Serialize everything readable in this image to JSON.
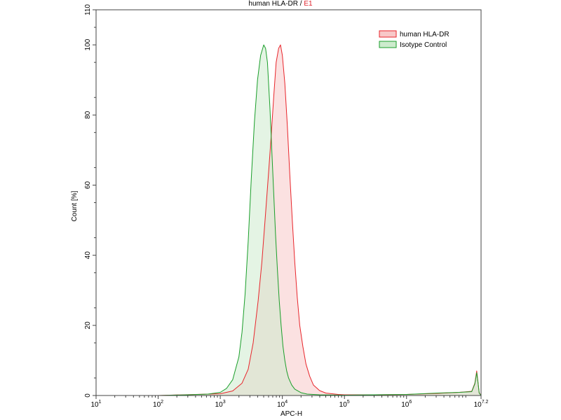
{
  "chart_data": {
    "type": "area",
    "title": "human HLA-DR",
    "title_separator": "/",
    "title_gate": "E1",
    "xlabel": "APC-H",
    "ylabel": "Count [%]",
    "x_scale": "log",
    "xlim": [
      10,
      15848932
    ],
    "ylim": [
      0,
      110
    ],
    "grid": false,
    "legend_position": "top-right",
    "x_ticks": [
      {
        "value": 10,
        "base": "10",
        "exp": "1"
      },
      {
        "value": 100,
        "base": "10",
        "exp": "2"
      },
      {
        "value": 1000,
        "base": "10",
        "exp": "3"
      },
      {
        "value": 10000,
        "base": "10",
        "exp": "4"
      },
      {
        "value": 100000,
        "base": "10",
        "exp": "5"
      },
      {
        "value": 1000000,
        "base": "10",
        "exp": "6"
      },
      {
        "value": 15848932,
        "base": "10",
        "exp": "7.2"
      }
    ],
    "y_ticks": [
      0,
      20,
      40,
      60,
      80,
      100,
      110
    ],
    "series": [
      {
        "name": "human HLA-DR",
        "line_color": "#e8252b",
        "fill_color": "#f8c8c8",
        "points": [
          [
            10,
            0
          ],
          [
            100,
            0
          ],
          [
            400,
            0.3
          ],
          [
            1000,
            0.5
          ],
          [
            1585,
            1.3
          ],
          [
            2239,
            3.5
          ],
          [
            2818,
            7.5
          ],
          [
            3388,
            15
          ],
          [
            4074,
            27
          ],
          [
            4677,
            38
          ],
          [
            5370,
            52
          ],
          [
            6026,
            64
          ],
          [
            6607,
            74
          ],
          [
            7244,
            85
          ],
          [
            7943,
            95
          ],
          [
            8710,
            99
          ],
          [
            9333,
            100
          ],
          [
            10000,
            97
          ],
          [
            10965,
            89
          ],
          [
            12023,
            77
          ],
          [
            13183,
            63
          ],
          [
            14454,
            50
          ],
          [
            15849,
            38
          ],
          [
            17378,
            28
          ],
          [
            19055,
            20
          ],
          [
            21380,
            14
          ],
          [
            23988,
            9
          ],
          [
            27542,
            5.5
          ],
          [
            31623,
            3
          ],
          [
            39811,
            1.4
          ],
          [
            50119,
            0.7
          ],
          [
            79433,
            0.3
          ],
          [
            100000,
            0.2
          ],
          [
            316228,
            0.2
          ],
          [
            1000000,
            0.3
          ],
          [
            3162278,
            0.6
          ],
          [
            7079458,
            0.9
          ],
          [
            11220185,
            1.2
          ],
          [
            12589254,
            3.5
          ],
          [
            13489629,
            7
          ],
          [
            14125375,
            4
          ],
          [
            14791084,
            0.8
          ],
          [
            15848932,
            0
          ]
        ]
      },
      {
        "name": "Isotype Control",
        "line_color": "#1a9e2a",
        "fill_color": "#cdebcd",
        "points": [
          [
            10,
            0
          ],
          [
            100,
            0
          ],
          [
            300,
            0.2
          ],
          [
            631,
            0.4
          ],
          [
            1000,
            0.9
          ],
          [
            1259,
            2
          ],
          [
            1585,
            4.5
          ],
          [
            1995,
            11
          ],
          [
            2239,
            18
          ],
          [
            2512,
            29
          ],
          [
            2818,
            44
          ],
          [
            3162,
            62
          ],
          [
            3548,
            78
          ],
          [
            3981,
            90
          ],
          [
            4467,
            97
          ],
          [
            5012,
            100
          ],
          [
            5370,
            99
          ],
          [
            5754,
            95
          ],
          [
            6310,
            82
          ],
          [
            6761,
            70
          ],
          [
            7244,
            58
          ],
          [
            7762,
            46
          ],
          [
            8318,
            36
          ],
          [
            8913,
            27
          ],
          [
            9550,
            20
          ],
          [
            10233,
            14
          ],
          [
            10965,
            10
          ],
          [
            11749,
            7
          ],
          [
            12589,
            5
          ],
          [
            14125,
            3
          ],
          [
            15849,
            1.8
          ],
          [
            19953,
            0.8
          ],
          [
            25119,
            0.4
          ],
          [
            39811,
            0.2
          ],
          [
            100000,
            0.1
          ],
          [
            1000000,
            0.3
          ],
          [
            3162278,
            0.7
          ],
          [
            7079458,
            0.9
          ],
          [
            11220185,
            1.1
          ],
          [
            12589254,
            3.3
          ],
          [
            13489629,
            6.5
          ],
          [
            14125375,
            3.8
          ],
          [
            14791084,
            0.7
          ],
          [
            15848932,
            0
          ]
        ]
      }
    ]
  }
}
